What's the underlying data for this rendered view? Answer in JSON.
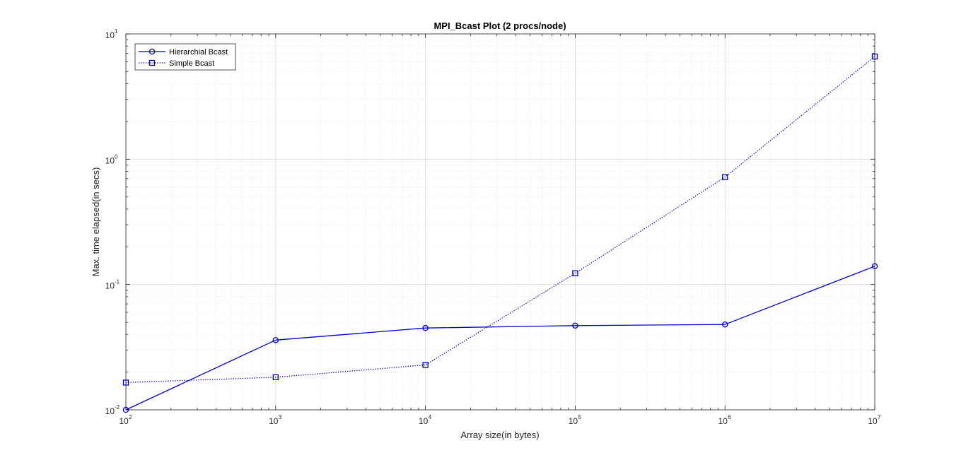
{
  "chart_data": {
    "type": "line",
    "title": "MPI_Bcast Plot (2 procs/node)",
    "xlabel": "Array size(in bytes)",
    "ylabel": "Max. time elapsed(in secs)",
    "xscale": "log",
    "yscale": "log",
    "xlim": [
      100,
      10000000
    ],
    "ylim": [
      0.01,
      10
    ],
    "grid": true,
    "minor_grid": true,
    "legend_position": "top-left",
    "x_ticks": [
      {
        "base": "10",
        "exp": "2"
      },
      {
        "base": "10",
        "exp": "3"
      },
      {
        "base": "10",
        "exp": "4"
      },
      {
        "base": "10",
        "exp": "5"
      },
      {
        "base": "10",
        "exp": "6"
      },
      {
        "base": "10",
        "exp": "7"
      }
    ],
    "y_ticks": [
      {
        "base": "10",
        "exp": "-2"
      },
      {
        "base": "10",
        "exp": "-1"
      },
      {
        "base": "10",
        "exp": "0"
      },
      {
        "base": "10",
        "exp": "1"
      }
    ],
    "x": [
      100,
      1000,
      10000,
      100000,
      1000000,
      10000000
    ],
    "series": [
      {
        "name": "Hierarchial Bcast",
        "values": [
          0.01,
          0.036,
          0.045,
          0.047,
          0.048,
          0.14
        ],
        "color": "#0000cc",
        "line_style": "solid",
        "marker": "circle"
      },
      {
        "name": "Simple Bcast",
        "values": [
          0.0165,
          0.0182,
          0.0228,
          0.123,
          0.72,
          6.6
        ],
        "color": "#0000cc",
        "line_style": "dotted",
        "marker": "square"
      }
    ]
  }
}
